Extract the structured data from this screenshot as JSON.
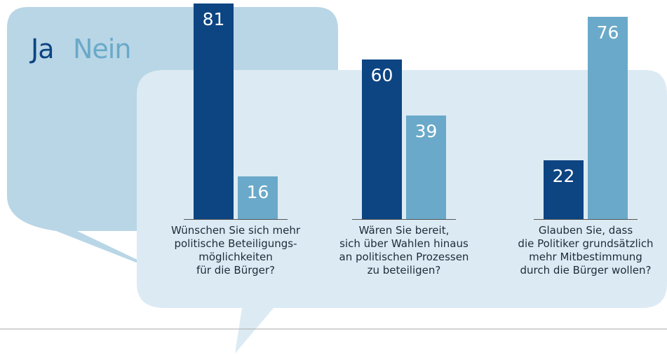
{
  "chart_data": {
    "type": "bar",
    "categories": [
      "Wünschen Sie sich mehr\npolitische Beteiligungs-\nmöglichkeiten\nfür die Bürger?",
      "Wären Sie bereit,\nsich über Wahlen hinaus\nan politischen Prozessen\nzu beteiligen?",
      "Glauben Sie, dass\ndie Politiker grundsätzlich\nmehr Mitbestimmung\ndurch die Bürger wollen?"
    ],
    "series": [
      {
        "name": "Ja",
        "color": "#0d4482",
        "values": [
          81,
          60,
          22
        ]
      },
      {
        "name": "Nein",
        "color": "#6aa9c9",
        "values": [
          16,
          39,
          76
        ]
      }
    ]
  }
}
